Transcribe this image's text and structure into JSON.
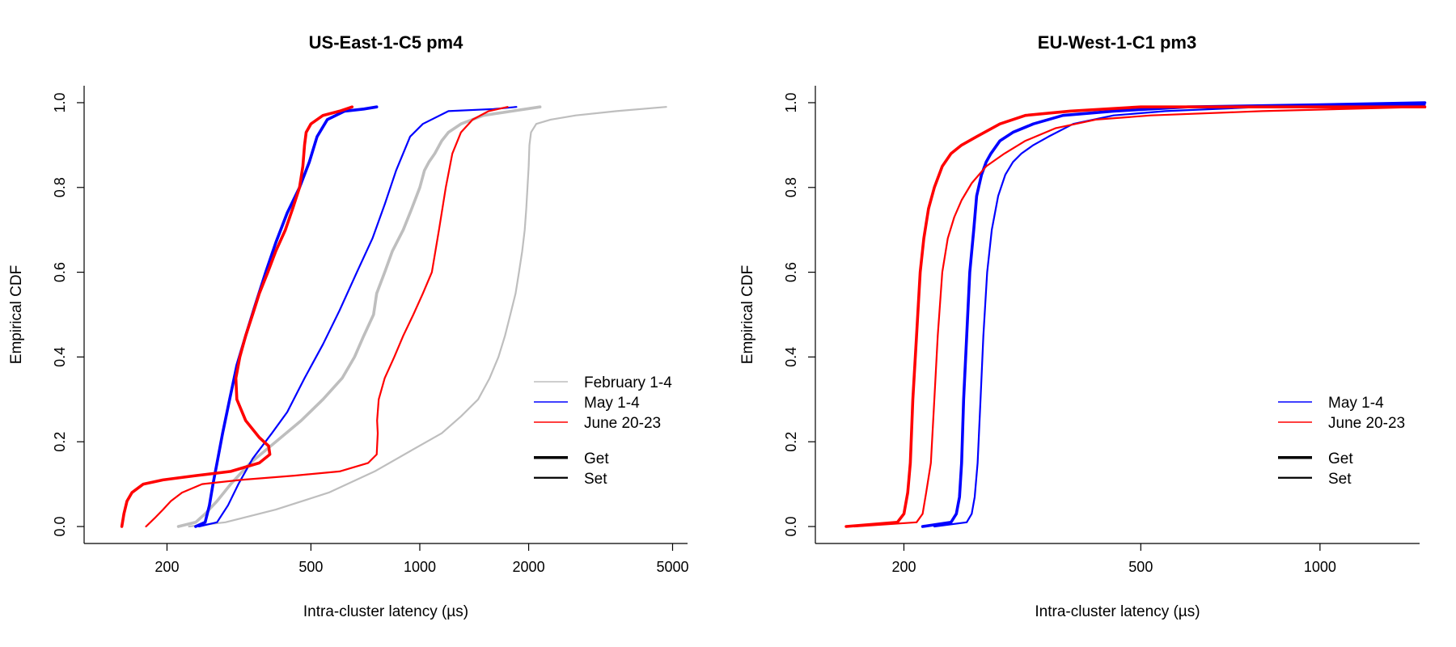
{
  "chart_data": [
    {
      "type": "line",
      "title": "US-East-1-C5 pm4",
      "xlabel": "Intra-cluster latency (µs)",
      "ylabel": "Empirical CDF",
      "x_scale": "log",
      "xlim": [
        118,
        5500
      ],
      "ylim": [
        -0.04,
        1.04
      ],
      "x_ticks": [
        "200",
        "500",
        "1000",
        "2000",
        "5000"
      ],
      "y_ticks": [
        "0.0",
        "0.2",
        "0.4",
        "0.6",
        "0.8",
        "1.0"
      ],
      "legend_position": "right",
      "legend_entries": [
        "February 1-4",
        "May 1-4",
        "June 20-23",
        "Get",
        "Set"
      ],
      "series": [
        {
          "name": "February 1-4",
          "color": "#bebebe",
          "style": "Get",
          "x": [
            215,
            240,
            255,
            275,
            300,
            340,
            400,
            470,
            540,
            610,
            660,
            700,
            745,
            760,
            800,
            840,
            900,
            950,
            1000,
            1030,
            1060,
            1100,
            1150,
            1200,
            1300,
            1500,
            1800,
            2150
          ],
          "y": [
            0.0,
            0.01,
            0.03,
            0.06,
            0.1,
            0.15,
            0.2,
            0.25,
            0.3,
            0.35,
            0.4,
            0.45,
            0.5,
            0.55,
            0.6,
            0.65,
            0.7,
            0.75,
            0.8,
            0.84,
            0.86,
            0.88,
            0.91,
            0.93,
            0.95,
            0.97,
            0.98,
            0.99
          ]
        },
        {
          "name": "February 1-4",
          "color": "#bebebe",
          "style": "Set",
          "x": [
            230,
            290,
            400,
            560,
            750,
            950,
            1150,
            1300,
            1450,
            1560,
            1650,
            1720,
            1780,
            1840,
            1880,
            1920,
            1950,
            1970,
            1985,
            2000,
            2010,
            2030,
            2100,
            2300,
            2700,
            3500,
            4800
          ],
          "y": [
            0.0,
            0.01,
            0.04,
            0.08,
            0.13,
            0.18,
            0.22,
            0.26,
            0.3,
            0.35,
            0.4,
            0.45,
            0.5,
            0.55,
            0.6,
            0.65,
            0.7,
            0.75,
            0.8,
            0.85,
            0.9,
            0.93,
            0.95,
            0.96,
            0.97,
            0.98,
            0.99
          ]
        },
        {
          "name": "May 1-4",
          "color": "#0000ff",
          "style": "Get",
          "x": [
            240,
            255,
            262,
            268,
            275,
            285,
            298,
            312,
            330,
            350,
            375,
            400,
            430,
            465,
            495,
            520,
            555,
            620,
            700,
            760
          ],
          "y": [
            0.0,
            0.01,
            0.05,
            0.1,
            0.15,
            0.22,
            0.3,
            0.38,
            0.45,
            0.52,
            0.6,
            0.67,
            0.74,
            0.8,
            0.86,
            0.92,
            0.96,
            0.98,
            0.985,
            0.99
          ]
        },
        {
          "name": "May 1-4",
          "color": "#0000ff",
          "style": "Set",
          "x": [
            245,
            275,
            295,
            315,
            345,
            390,
            430,
            480,
            540,
            600,
            670,
            740,
            800,
            860,
            940,
            1020,
            1200,
            1600,
            1850
          ],
          "y": [
            0.0,
            0.01,
            0.05,
            0.1,
            0.16,
            0.22,
            0.27,
            0.35,
            0.43,
            0.51,
            0.6,
            0.68,
            0.76,
            0.84,
            0.92,
            0.95,
            0.98,
            0.985,
            0.99
          ]
        },
        {
          "name": "June 20-23",
          "color": "#ff0000",
          "style": "Get",
          "x": [
            150,
            152,
            155,
            160,
            172,
            195,
            240,
            300,
            360,
            385,
            382,
            360,
            330,
            312,
            310,
            318,
            330,
            345,
            360,
            380,
            400,
            425,
            445,
            465,
            475,
            480,
            485,
            500,
            540,
            600,
            650
          ],
          "y": [
            0.0,
            0.03,
            0.06,
            0.08,
            0.1,
            0.11,
            0.12,
            0.13,
            0.15,
            0.17,
            0.19,
            0.21,
            0.25,
            0.3,
            0.35,
            0.4,
            0.45,
            0.5,
            0.55,
            0.6,
            0.65,
            0.7,
            0.75,
            0.8,
            0.85,
            0.9,
            0.93,
            0.95,
            0.97,
            0.98,
            0.99
          ]
        },
        {
          "name": "June 20-23",
          "color": "#ff0000",
          "style": "Set",
          "x": [
            175,
            185,
            195,
            205,
            220,
            250,
            320,
            450,
            600,
            720,
            760,
            765,
            762,
            770,
            800,
            850,
            900,
            960,
            1020,
            1080,
            1130,
            1180,
            1230,
            1300,
            1400,
            1550,
            1750
          ],
          "y": [
            0.0,
            0.02,
            0.04,
            0.06,
            0.08,
            0.1,
            0.11,
            0.12,
            0.13,
            0.15,
            0.17,
            0.22,
            0.25,
            0.3,
            0.35,
            0.4,
            0.45,
            0.5,
            0.55,
            0.6,
            0.7,
            0.8,
            0.88,
            0.93,
            0.96,
            0.98,
            0.99
          ]
        }
      ]
    },
    {
      "type": "line",
      "title": "EU-West-1-C1 pm3",
      "xlabel": "Intra-cluster latency (µs)",
      "ylabel": "Empirical CDF",
      "x_scale": "log",
      "xlim": [
        142,
        1470
      ],
      "ylim": [
        -0.04,
        1.04
      ],
      "x_ticks": [
        "200",
        "500",
        "1000"
      ],
      "y_ticks": [
        "0.0",
        "0.2",
        "0.4",
        "0.6",
        "0.8",
        "1.0"
      ],
      "legend_position": "right",
      "legend_entries": [
        "May 1-4",
        "June 20-23",
        "Get",
        "Set"
      ],
      "series": [
        {
          "name": "May 1-4",
          "color": "#0000ff",
          "style": "Get",
          "x": [
            215,
            240,
            245,
            248,
            250,
            252,
            255,
            258,
            262,
            265,
            270,
            275,
            280,
            290,
            305,
            330,
            370,
            450,
            600,
            1000,
            1500
          ],
          "y": [
            0.0,
            0.01,
            0.03,
            0.07,
            0.15,
            0.3,
            0.45,
            0.6,
            0.7,
            0.78,
            0.83,
            0.86,
            0.88,
            0.91,
            0.93,
            0.95,
            0.97,
            0.98,
            0.99,
            0.995,
            1.0
          ]
        },
        {
          "name": "May 1-4",
          "color": "#0000ff",
          "style": "Set",
          "x": [
            225,
            255,
            260,
            263,
            266,
            269,
            272,
            276,
            281,
            288,
            296,
            305,
            315,
            330,
            350,
            385,
            450,
            550,
            800,
            1500
          ],
          "y": [
            0.0,
            0.01,
            0.03,
            0.07,
            0.15,
            0.3,
            0.45,
            0.6,
            0.7,
            0.78,
            0.83,
            0.86,
            0.88,
            0.9,
            0.92,
            0.95,
            0.97,
            0.98,
            0.99,
            0.995
          ]
        },
        {
          "name": "June 20-23",
          "color": "#ff0000",
          "style": "Get",
          "x": [
            160,
            195,
            200,
            203,
            205,
            207,
            210,
            213,
            216,
            220,
            225,
            232,
            240,
            250,
            265,
            290,
            320,
            380,
            500,
            1500
          ],
          "y": [
            0.0,
            0.01,
            0.03,
            0.08,
            0.15,
            0.3,
            0.45,
            0.6,
            0.68,
            0.75,
            0.8,
            0.85,
            0.88,
            0.9,
            0.92,
            0.95,
            0.97,
            0.98,
            0.99,
            0.99
          ]
        },
        {
          "name": "June 20-23",
          "color": "#ff0000",
          "style": "Set",
          "x": [
            165,
            210,
            215,
            218,
            222,
            225,
            228,
            232,
            237,
            243,
            250,
            260,
            275,
            295,
            320,
            360,
            420,
            520,
            800,
            1500
          ],
          "y": [
            0.0,
            0.01,
            0.03,
            0.08,
            0.15,
            0.3,
            0.45,
            0.6,
            0.68,
            0.73,
            0.77,
            0.81,
            0.85,
            0.88,
            0.91,
            0.94,
            0.96,
            0.97,
            0.98,
            0.99
          ]
        }
      ]
    }
  ]
}
